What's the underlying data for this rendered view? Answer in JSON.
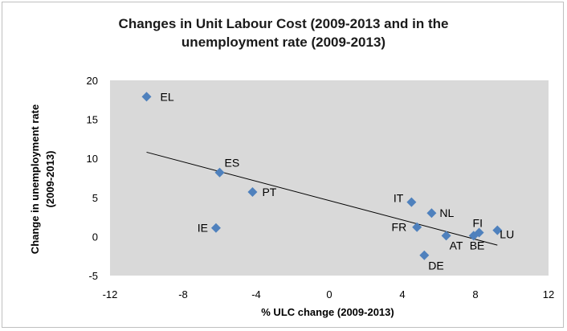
{
  "chart_data": {
    "type": "scatter",
    "title_line1": "Changes in Unit Labour Cost (2009-2013 and in the",
    "title_line2": "unemployment rate (2009-2013)",
    "xlabel": "% ULC change (2009-2013)",
    "ylabel_line1": "Change in unemployment rate",
    "ylabel_line2": "(2009-2013)",
    "xlim": [
      -12,
      12
    ],
    "ylim": [
      -5,
      20
    ],
    "xticks": [
      "-12",
      "-8",
      "-4",
      "0",
      "4",
      "8",
      "12"
    ],
    "yticks": [
      "20",
      "15",
      "10",
      "5",
      "0",
      "-5"
    ],
    "grid": false,
    "plot_background": "#d9d9d9",
    "marker_color": "#4f81bd",
    "trendline": {
      "x": [
        -10,
        9.2
      ],
      "y": [
        10.8,
        -1.1
      ]
    },
    "points": [
      {
        "label": "EL",
        "x": -10.0,
        "y": 17.9
      },
      {
        "label": "ES",
        "x": -6.0,
        "y": 8.2
      },
      {
        "label": "PT",
        "x": -4.2,
        "y": 5.7
      },
      {
        "label": "IE",
        "x": -6.2,
        "y": 1.1
      },
      {
        "label": "IT",
        "x": 4.5,
        "y": 4.4
      },
      {
        "label": "NL",
        "x": 5.6,
        "y": 3.0
      },
      {
        "label": "FR",
        "x": 4.8,
        "y": 1.2
      },
      {
        "label": "AT",
        "x": 6.4,
        "y": 0.1
      },
      {
        "label": "DE",
        "x": 5.2,
        "y": -2.4
      },
      {
        "label": "FI",
        "x": 8.2,
        "y": 0.5
      },
      {
        "label": "BE",
        "x": 7.9,
        "y": 0.1
      },
      {
        "label": "LU",
        "x": 9.2,
        "y": 0.8
      }
    ]
  }
}
